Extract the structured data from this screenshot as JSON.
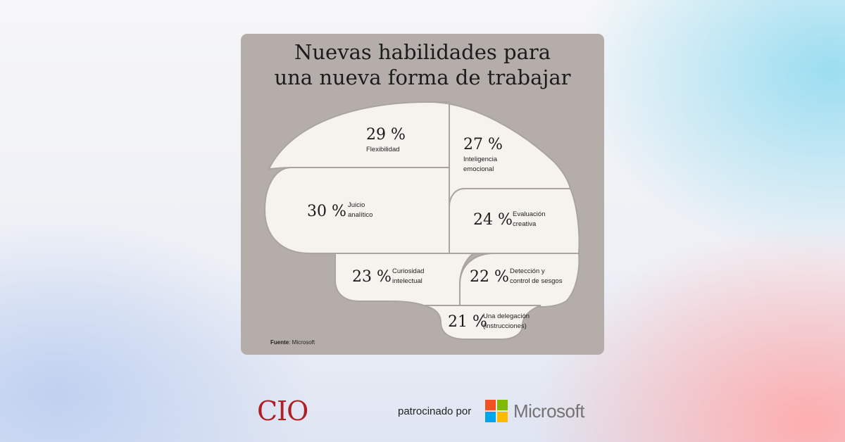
{
  "title": {
    "line1": "Nuevas habilidades para",
    "line2": "una nueva forma de trabajar"
  },
  "segments": [
    {
      "percent": "29 %",
      "label1": "Flexibilidad",
      "label2": ""
    },
    {
      "percent": "27 %",
      "label1": "Inteligencia",
      "label2": "emocional"
    },
    {
      "percent": "30 %",
      "label1": "Juicio",
      "label2": "analítico"
    },
    {
      "percent": "24 %",
      "label1": "Evaluación",
      "label2": "creativa"
    },
    {
      "percent": "23 %",
      "label1": "Curiosidad",
      "label2": "intelectual"
    },
    {
      "percent": "22 %",
      "label1": "Detección y",
      "label2": "control de sesgos"
    },
    {
      "percent": "21 %",
      "label1": "Una delegación",
      "label2": "(instrucciones)"
    }
  ],
  "source": {
    "label": "Fuente",
    "text": ": Microsoft"
  },
  "footer": {
    "cio_logo": "CIO",
    "sponsor_text": "patrocinado por",
    "microsoft_text": "Microsoft",
    "microsoft_logo_colors": [
      "#f25022",
      "#7fba00",
      "#00a4ef",
      "#ffb900"
    ]
  },
  "colors": {
    "card": "#b5adaa",
    "brain_fill": "#f6f3ef",
    "brain_lines": "#aaa4a0",
    "cio_red": "#b01e23"
  }
}
